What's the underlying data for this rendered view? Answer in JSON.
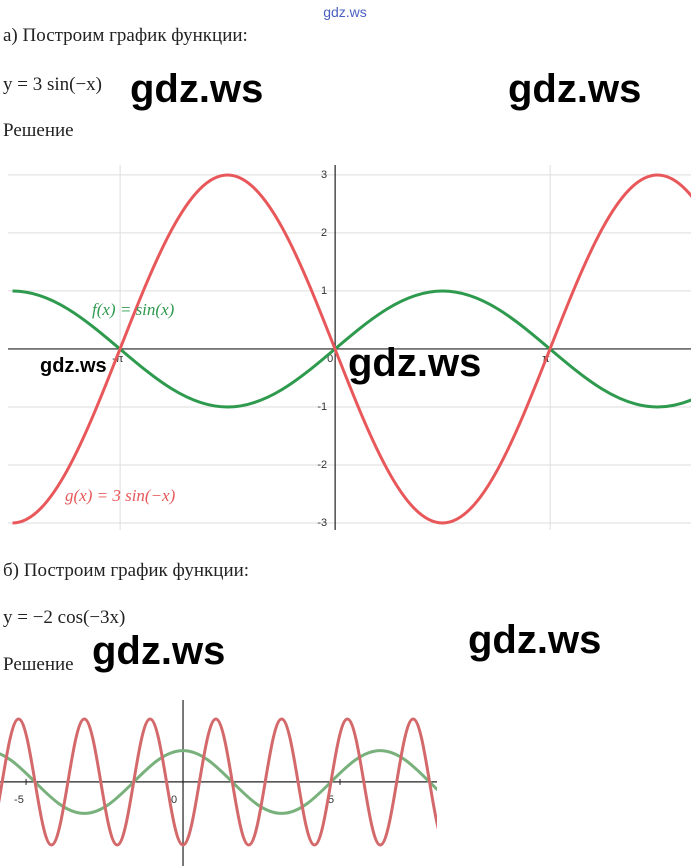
{
  "watermark_top": "gdz.ws",
  "watermarks": [
    "gdz.ws",
    "gdz.ws",
    "gdz.ws",
    "gdz.ws",
    "gdz.ws",
    "gdz.ws"
  ],
  "part_a": {
    "heading": "а) Построим график функции:",
    "formula": "y = 3 sin(−x)",
    "solution_label": "Решение"
  },
  "part_b": {
    "heading": "б) Построим график функции:",
    "formula": "y = −2 cos(−3x)",
    "solution_label": "Решение"
  },
  "chart_data": [
    {
      "type": "function",
      "xlim": [
        -4.78,
        5.2
      ],
      "ylim": [
        -3.12,
        3.17
      ],
      "xticks": [
        {
          "value": -3.1416,
          "label": "-π"
        },
        0,
        {
          "value": 3.1416,
          "label": "π"
        }
      ],
      "yticks": [
        -3,
        -2,
        -1,
        1,
        2,
        3
      ],
      "grid": true,
      "curves": [
        {
          "label": "f(x) = sin(x)",
          "color": "#2e9a4e"
        },
        {
          "label": "g(x) = 3 sin(−x)",
          "color": "#e8585a"
        }
      ]
    },
    {
      "type": "function",
      "xlim": [
        -5.83,
        8.09
      ],
      "ylim": [
        -2.68,
        2.61
      ],
      "xticks": [
        -5,
        0,
        5
      ],
      "grid": false,
      "curves": [
        {
          "color": "#79b17c"
        },
        {
          "color": "#d4696b"
        }
      ]
    }
  ]
}
